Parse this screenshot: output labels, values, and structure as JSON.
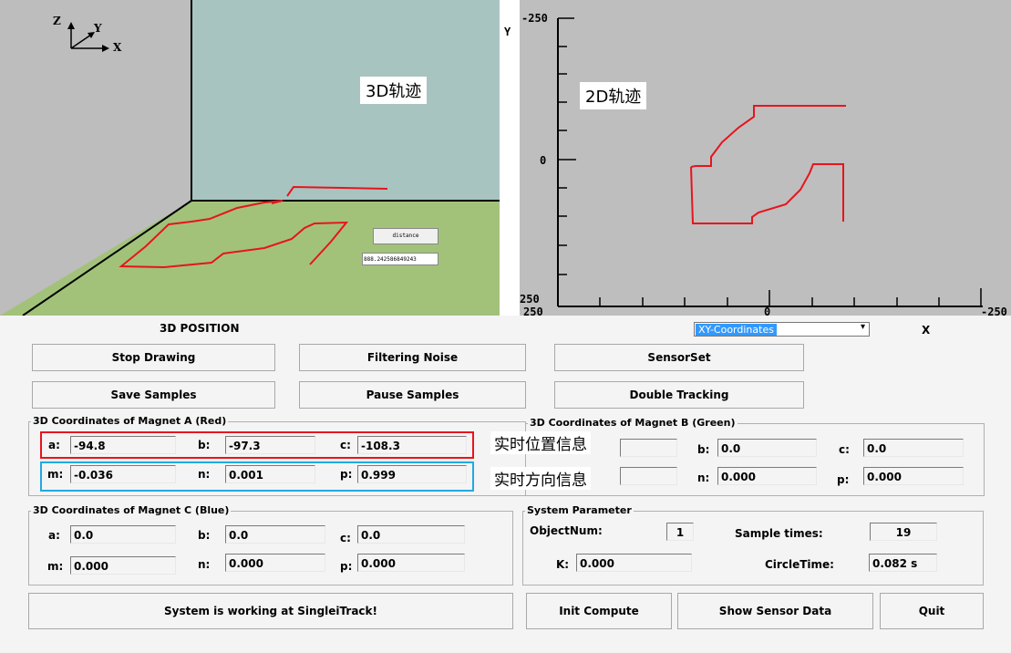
{
  "view3d": {
    "axis_z": "Z",
    "axis_y": "Y",
    "axis_x": "X",
    "label": "3D轨迹",
    "distance_label": "distance",
    "distance_value": "888.242586849243",
    "caption": "3D POSITION"
  },
  "view2d": {
    "label": "2D轨迹",
    "y_axis_title": "Y",
    "y_top": "-250",
    "y_mid": "0",
    "y_bottom": "250",
    "x_left": "250",
    "x_mid": "0",
    "x_right": "-250",
    "x_axis_title": "X",
    "coord_select": "XY-Coordinates"
  },
  "buttons": {
    "stop_drawing": "Stop Drawing",
    "filtering_noise": "Filtering Noise",
    "sensor_set": "SensorSet",
    "save_samples": "Save Samples",
    "pause_samples": "Pause Samples",
    "double_tracking": "Double Tracking",
    "init_compute": "Init Compute",
    "show_sensor_data": "Show Sensor Data",
    "quit": "Quit"
  },
  "magnet_a": {
    "title": "3D Coordinates of Magnet A  (Red)",
    "a_label": "a:",
    "a": "-94.8",
    "b_label": "b:",
    "b": "-97.3",
    "c_label": "c:",
    "c": "-108.3",
    "m_label": "m:",
    "m": "-0.036",
    "n_label": "n:",
    "n": "0.001",
    "p_label": "p:",
    "p": "0.999"
  },
  "magnet_b": {
    "title": "3D Coordinates of Magnet B  (Green)",
    "b_label": "b:",
    "b": "0.0",
    "c_label": "c:",
    "c": "0.0",
    "n_label": "n:",
    "n": "0.000",
    "p_label": "p:",
    "p": "0.000"
  },
  "magnet_c": {
    "title": "3D Coordinates of Magnet C  (Blue)",
    "a_label": "a:",
    "a": "0.0",
    "b_label": "b:",
    "b": "0.0",
    "c_label": "c:",
    "c": "0.0",
    "m_label": "m:",
    "m": "0.000",
    "n_label": "n:",
    "n": "0.000",
    "p_label": "p:",
    "p": "0.000"
  },
  "annotations": {
    "position_info": "实时位置信息",
    "direction_info": "实时方向信息"
  },
  "system": {
    "title": "System Parameter",
    "object_num_label": "ObjectNum:",
    "object_num": "1",
    "sample_times_label": "Sample times:",
    "sample_times": "19",
    "k_label": "K:",
    "k": "0.000",
    "circle_time_label": "CircleTime:",
    "circle_time": "0.082 s"
  },
  "status": "System is working at SingleiTrack!",
  "colors": {
    "trace": "#e8141c",
    "wall": "#a8c4c1",
    "floor": "#a2c27a",
    "annot_red": "#e8141c",
    "annot_blue": "#23a9e1"
  }
}
